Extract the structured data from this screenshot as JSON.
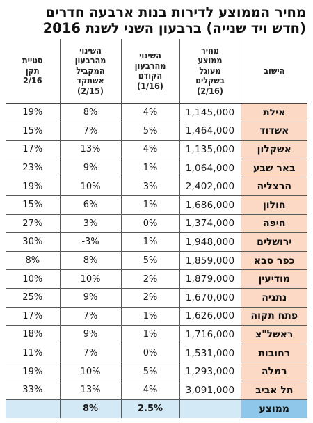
{
  "title": {
    "line1": "מחיר הממוצע לדירות בנות ארבעה חדרים",
    "line2": "(חדש ויד שנייה) ברבעון השני לשנת 2016"
  },
  "columns": {
    "town": "הישוב",
    "price": "מחיר\nממוצע\nמעוגל\nבשקלים\n(2/16)",
    "change_prev_q": "השינוי\nמהרבעון\nהקודם\n(1/16)",
    "change_year": "השינוי\nמהרבעון\nהמקביל\nאשתקד\n(2/15)",
    "deviation": "סטיית\nתקן\n2/16"
  },
  "rows": [
    {
      "town": "אילת",
      "price": "1,145,000",
      "change_prev_q": "4%",
      "change_year": "8%",
      "deviation": "19%"
    },
    {
      "town": "אשדוד",
      "price": "1,464,000",
      "change_prev_q": "5%",
      "change_year": "7%",
      "deviation": "15%"
    },
    {
      "town": "אשקלון",
      "price": "1,135,000",
      "change_prev_q": "4%",
      "change_year": "13%",
      "deviation": "17%"
    },
    {
      "town": "באר שבע",
      "price": "1,064,000",
      "change_prev_q": "1%",
      "change_year": "9%",
      "deviation": "23%"
    },
    {
      "town": "הרצליה",
      "price": "2,402,000",
      "change_prev_q": "3%",
      "change_year": "10%",
      "deviation": "19%"
    },
    {
      "town": "חולון",
      "price": "1,686,000",
      "change_prev_q": "1%",
      "change_year": "6%",
      "deviation": "15%"
    },
    {
      "town": "חיפה",
      "price": "1,374,000",
      "change_prev_q": "0%",
      "change_year": "3%",
      "deviation": "27%"
    },
    {
      "town": "ירושלים",
      "price": "1,948,000",
      "change_prev_q": "1%",
      "change_year": "-3%",
      "deviation": "30%"
    },
    {
      "town": "כפר סבא",
      "price": "1,859,000",
      "change_prev_q": "5%",
      "change_year": "8%",
      "deviation": "8%"
    },
    {
      "town": "מודיעין",
      "price": "1,879,000",
      "change_prev_q": "2%",
      "change_year": "10%",
      "deviation": "10%"
    },
    {
      "town": "נתניה",
      "price": "1,670,000",
      "change_prev_q": "2%",
      "change_year": "9%",
      "deviation": "25%"
    },
    {
      "town": "פתח תקוה",
      "price": "1,626,000",
      "change_prev_q": "1%",
      "change_year": "7%",
      "deviation": "17%"
    },
    {
      "town": "ראשל\"צ",
      "price": "1,716,000",
      "change_prev_q": "1%",
      "change_year": "9%",
      "deviation": "18%"
    },
    {
      "town": "רחובות",
      "price": "1,531,000",
      "change_prev_q": "0%",
      "change_year": "7%",
      "deviation": "11%"
    },
    {
      "town": "רמלה",
      "price": "1,293,000",
      "change_prev_q": "5%",
      "change_year": "10%",
      "deviation": "19%"
    },
    {
      "town": "תל אביב",
      "price": "3,091,000",
      "change_prev_q": "4%",
      "change_year": "13%",
      "deviation": "33%"
    }
  ],
  "average": {
    "label": "ממוצע",
    "price": "",
    "change_prev_q": "2.5%",
    "change_year": "8%",
    "deviation": ""
  },
  "colors": {
    "town_cell": "#fbd9c5",
    "average_row": "#d4e9f6",
    "average_label": "#8fc7ea"
  }
}
